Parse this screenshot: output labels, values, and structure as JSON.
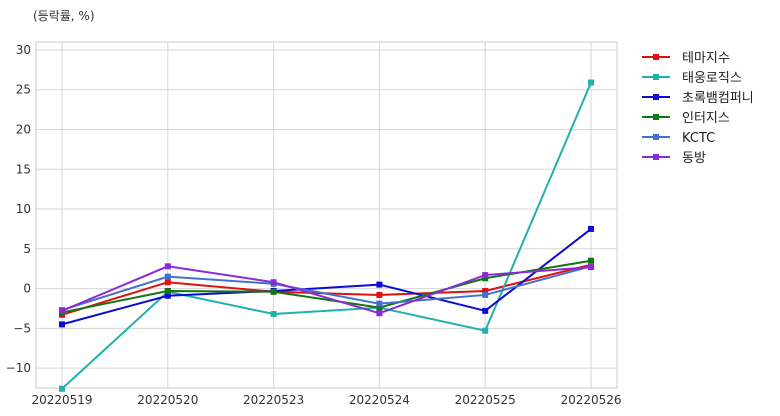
{
  "chart_data": {
    "type": "line",
    "ylabel": "(등락률, %)",
    "categories": [
      "20220519",
      "20220520",
      "20220523",
      "20220524",
      "20220525",
      "20220526"
    ],
    "ylim": [
      -12.5,
      31
    ],
    "yticks": [
      -10,
      -5,
      0,
      5,
      10,
      15,
      20,
      25,
      30
    ],
    "grid": true,
    "legend_position": "right-top-outside",
    "series": [
      {
        "name": "테마지수",
        "color": "#dd1111",
        "values": [
          -3.3,
          0.8,
          -0.4,
          -0.8,
          -0.3,
          3.0
        ]
      },
      {
        "name": "태웅로직스",
        "color": "#20b0b0",
        "values": [
          -12.6,
          -0.4,
          -3.2,
          -2.4,
          -5.3,
          25.9
        ]
      },
      {
        "name": "초록뱀컴퍼니",
        "color": "#0b0bd6",
        "values": [
          -4.5,
          -0.9,
          -0.3,
          0.5,
          -2.8,
          7.5
        ]
      },
      {
        "name": "인터지스",
        "color": "#117711",
        "values": [
          -3.0,
          -0.3,
          -0.4,
          -2.4,
          1.3,
          3.5
        ]
      },
      {
        "name": "KCTC",
        "color": "#4470cc",
        "values": [
          -2.7,
          1.5,
          0.6,
          -1.9,
          -0.8,
          2.8
        ]
      },
      {
        "name": "동방",
        "color": "#8a2bd6",
        "values": [
          -2.8,
          2.8,
          0.8,
          -3.1,
          1.7,
          2.7
        ]
      }
    ]
  }
}
